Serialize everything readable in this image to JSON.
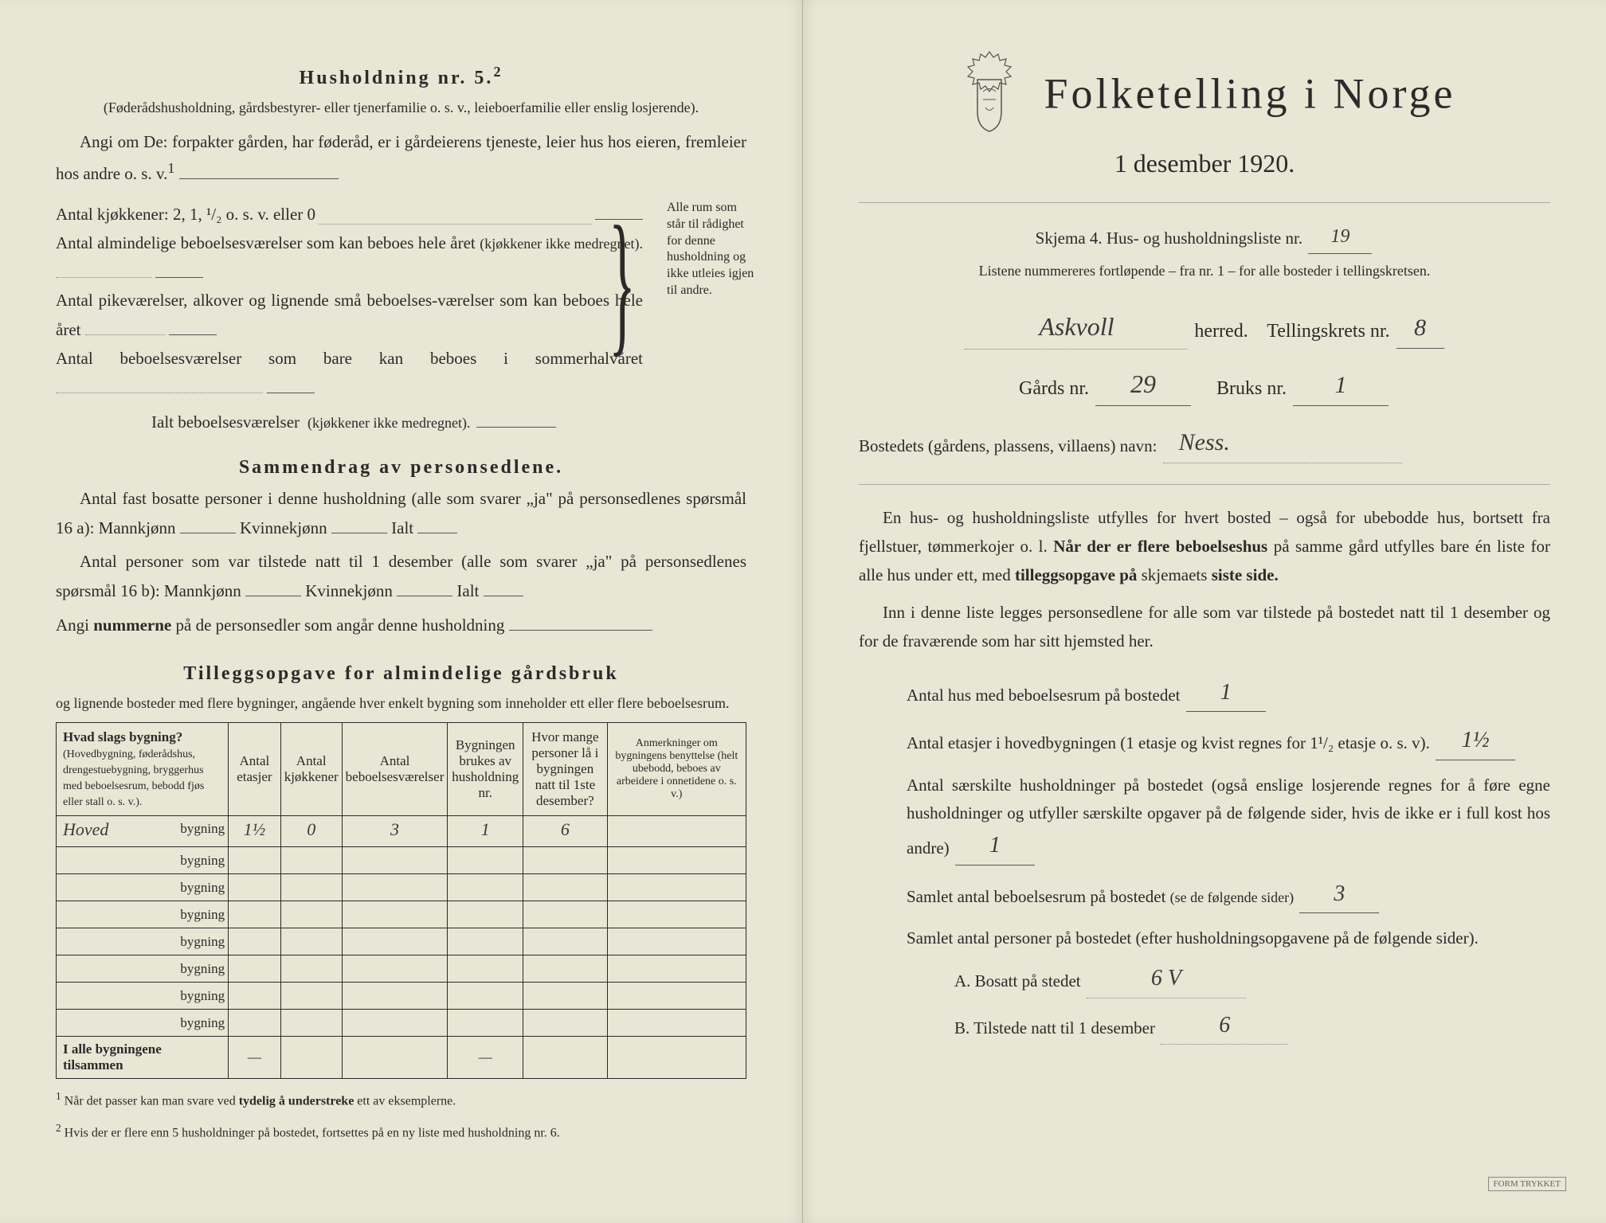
{
  "left": {
    "h5_title": "Husholdning nr. 5.",
    "h5_sup": "2",
    "h5_sub": "(Føderådshusholdning, gårdsbestyrer- eller tjenerfamilie o. s. v., leieboerfamilie eller enslig losjerende).",
    "h5_angi": "Angi om De: forpakter gården, har føderåd, er i gårdeierens tjeneste, leier hus hos eieren, fremleier hos andre o. s. v.",
    "h5_sup1": "1",
    "kjokk_label": "Antal kjøkkener: 2, 1, ¹/₂ o. s. v. eller 0",
    "alm_label": "Antal almindelige beboelsesværelser som kan beboes hele året",
    "alm_paren": "(kjøkkener ikke medregnet).",
    "pike_label": "Antal pikeværelser, alkover og lignende små beboelses-værelser som kan beboes hele året",
    "sommer_label": "Antal beboelsesværelser som bare kan beboes i sommerhalvåret",
    "ialt_label": "Ialt beboelsesværelser",
    "ialt_paren": "(kjøkkener ikke medregnet).",
    "brace_text": "Alle rum som står til rådighet for denne husholdning og ikke utleies igjen til andre.",
    "samm_title": "Sammendrag av personsedlene.",
    "samm_l1": "Antal fast bosatte personer i denne husholdning (alle som svarer „ja\" på personsedlenes spørsmål 16 a): Mannkjønn",
    "kvinne": "Kvinnekjønn",
    "ialt": "Ialt",
    "samm_l2": "Antal personer som var tilstede natt til 1 desember (alle som svarer „ja\" på personsedlenes spørsmål 16 b): Mannkjønn",
    "samm_l3": "Angi",
    "samm_l3b": "nummerne",
    "samm_l3c": "på de personsedler som angår denne husholdning",
    "till_title": "Tilleggsopgave for almindelige gårdsbruk",
    "till_sub": "og lignende bosteder med flere bygninger, angående hver enkelt bygning som inneholder ett eller flere beboelsesrum.",
    "table": {
      "headers": [
        "Hvad slags bygning?\n(Hovedbygning, føderådshus, drengestuebygning, bryggerhus med beboelsesrum, bebodd fjøs eller stall o. s. v.).",
        "Antal etasjer",
        "Antal kjøkkener",
        "Antal beboelsesværelser",
        "Bygningen brukes av husholdning nr.",
        "Hvor mange personer lå i bygningen natt til 1ste desember?",
        "Anmerkninger om bygningens benyttelse (helt ubebodd, beboes av arbeidere i onnetidene o. s. v.)"
      ],
      "bygning_word": "bygning",
      "row1": {
        "type": "Hoved",
        "etasjer": "1½",
        "kjokk": "0",
        "beboel": "3",
        "hushold": "1",
        "personer": "6",
        "anm": ""
      },
      "sum_label": "I alle bygningene tilsammen",
      "dash": "—"
    },
    "fn1_num": "1",
    "fn1": "Når det passer kan man svare ved",
    "fn1b": "tydelig å understreke",
    "fn1c": "ett av eksemplerne.",
    "fn2_num": "2",
    "fn2": "Hvis der er flere enn 5 husholdninger på bostedet, fortsettes på en ny liste med husholdning nr. 6."
  },
  "right": {
    "hero1": "Folketelling i Norge",
    "hero2": "1 desember 1920.",
    "skjema": "Skjema 4.  Hus- og husholdningsliste nr.",
    "skjema_val": "19",
    "liste_note": "Listene nummereres fortløpende – fra nr. 1 – for alle bosteder i tellingskretsen.",
    "herred_val": "Askvoll",
    "herred_lbl": "herred.",
    "krets_lbl": "Tellingskrets nr.",
    "krets_val": "8",
    "gards_lbl": "Gårds nr.",
    "gards_val": "29",
    "bruks_lbl": "Bruks nr.",
    "bruks_val": "1",
    "bosted_lbl": "Bostedets (gårdens, plassens, villaens) navn:",
    "bosted_val": "Ness.",
    "p1a": "En hus- og husholdningsliste utfylles for hvert bosted – også for ubebodde hus, bortsett fra fjellstuer, tømmerkojer o. l.",
    "p1b": "Når der er",
    "p1c": "flere beboelseshus",
    "p1d": "på samme gård utfylles bare én liste for alle hus under ett, med",
    "p1e": "tilleggsopgave på",
    "p1f": "skjemaets",
    "p1g": "siste side.",
    "p2": "Inn i denne liste legges personsedlene for alle som var tilstede på bostedet natt til 1 desember og for de fraværende som har sitt hjemsted her.",
    "q1": "Antal hus med beboelsesrum på bostedet",
    "q1_val": "1",
    "q2a": "Antal etasjer i hovedbygningen (1 etasje og kvist regnes for 1¹/₂ etasje o. s. v).",
    "q2_val": "1½",
    "q3": "Antal særskilte husholdninger på bostedet (også enslige losjerende regnes for å føre egne husholdninger og utfyller særskilte opgaver på de følgende sider, hvis de ikke er i full kost hos andre)",
    "q3_val": "1",
    "q4": "Samlet antal beboelsesrum på bostedet",
    "q4_paren": "(se de følgende sider)",
    "q4_val": "3",
    "q5": "Samlet antal personer på bostedet (efter husholdningsopgavene på de følgende sider).",
    "qA_lbl": "A.  Bosatt på stedet",
    "qA_val": "6 V",
    "qB_lbl": "B.  Tilstede natt til 1 desember",
    "qB_val": "6",
    "corner": "FORM TRYKKET"
  }
}
